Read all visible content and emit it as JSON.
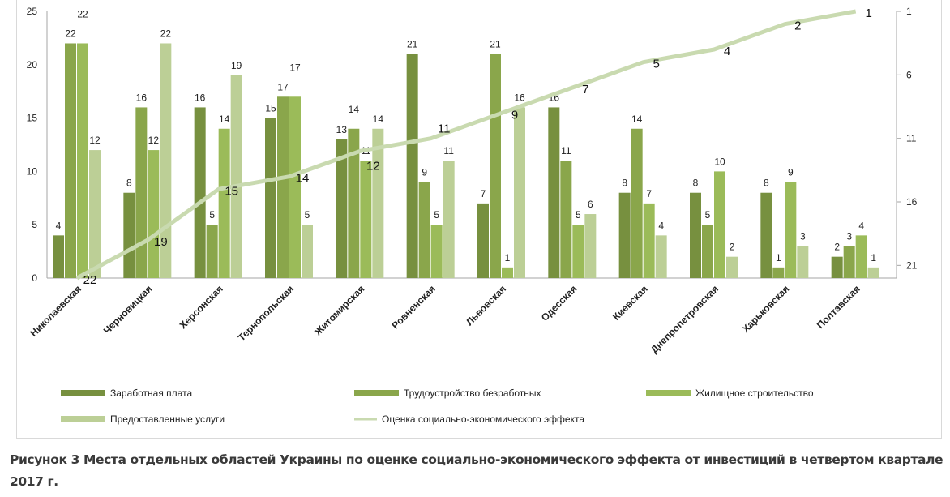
{
  "chart_data": {
    "type": "bar",
    "categories": [
      "Николаевская",
      "Черновицкая",
      "Херсонская",
      "Тернопольская",
      "Житомирская",
      "Ровненская",
      "Львовская",
      "Одесская",
      "Киевская",
      "Днепропетровская",
      "Харьковская",
      "Полтавская"
    ],
    "series": [
      {
        "name": "Заработная плата",
        "color": "#77903f",
        "values": [
          4,
          8,
          16,
          15,
          13,
          21,
          7,
          16,
          8,
          8,
          8,
          2
        ]
      },
      {
        "name": "Трудоустройство безработных",
        "color": "#8aa64b",
        "values": [
          22,
          16,
          5,
          17,
          14,
          9,
          21,
          11,
          14,
          5,
          1,
          3
        ]
      },
      {
        "name": "Жилищное строительство",
        "color": "#9bbb59",
        "values": [
          22,
          12,
          14,
          17,
          11,
          5,
          1,
          5,
          7,
          10,
          9,
          4
        ]
      },
      {
        "name": "Предоставленные услуги",
        "color": "#bccf96",
        "values": [
          12,
          22,
          19,
          5,
          14,
          11,
          16,
          6,
          4,
          2,
          3,
          1
        ]
      }
    ],
    "line_series": {
      "name": "Оценка социально-экономического эффекта",
      "color": "#c9dab0",
      "axis": "secondary",
      "values": [
        22,
        19,
        15,
        14,
        12,
        11,
        9,
        7,
        5,
        4,
        2,
        1
      ]
    },
    "ylim": [
      0,
      25
    ],
    "yticks": [
      "0",
      "5",
      "10",
      "15",
      "20",
      "25"
    ],
    "y2lim": [
      22,
      1
    ],
    "y2_reversed": true,
    "y2ticks": [
      "1",
      "6",
      "11",
      "16",
      "21"
    ],
    "grid": false,
    "legend_position": "bottom"
  },
  "caption": {
    "line1": "Рисунок 3 Места отдельных областей Украины по оценке социально-экономического эффекта от инвестиций в четвертом квартале",
    "line2": "2017 г."
  }
}
